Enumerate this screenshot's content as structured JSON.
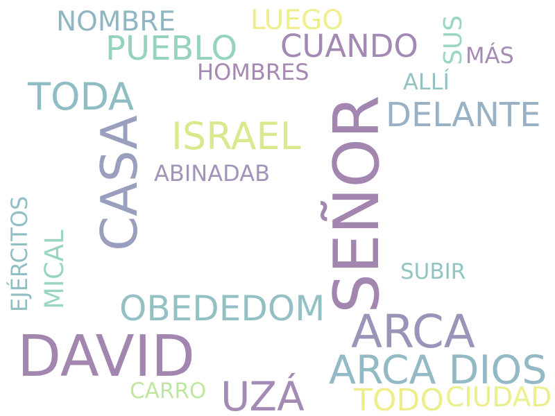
{
  "words": [
    {
      "id": "david",
      "text": "DAVID",
      "color": "#a286b0"
    },
    {
      "id": "senor",
      "text": "SEÑOR",
      "color": "#a286b0"
    },
    {
      "id": "casa",
      "text": "CASA",
      "color": "#9a9fbd"
    },
    {
      "id": "arca",
      "text": "ARCA",
      "color": "#9c94b8"
    },
    {
      "id": "arca-dios",
      "text": "ARCA DIOS",
      "color": "#92b9c4"
    },
    {
      "id": "uza",
      "text": "UZÁ",
      "color": "#a48bb5"
    },
    {
      "id": "obededom",
      "text": "OBEDEDOM",
      "color": "#92c0c4"
    },
    {
      "id": "israel",
      "text": "ISRAEL",
      "color": "#dbe98e"
    },
    {
      "id": "toda",
      "text": "TODA",
      "color": "#8fbdc4"
    },
    {
      "id": "delante",
      "text": "DELANTE",
      "color": "#98b1c4"
    },
    {
      "id": "pueblo",
      "text": "PUEBLO",
      "color": "#95d3bd"
    },
    {
      "id": "cuando",
      "text": "CUANDO",
      "color": "#a288b2"
    },
    {
      "id": "nombre",
      "text": "NOMBRE",
      "color": "#8fb6c2"
    },
    {
      "id": "luego",
      "text": "LUEGO",
      "color": "#eeee8d"
    },
    {
      "id": "hombres",
      "text": "HOMBRES",
      "color": "#a589b1"
    },
    {
      "id": "abinadab",
      "text": "ABINADAB",
      "color": "#a294b9"
    },
    {
      "id": "alli",
      "text": "ALLÍ",
      "color": "#92c2c4"
    },
    {
      "id": "mas",
      "text": "MÁS",
      "color": "#a68cb5"
    },
    {
      "id": "sus",
      "text": "SUS",
      "color": "#9ad7bf"
    },
    {
      "id": "subir",
      "text": "SUBIR",
      "color": "#92c4c4"
    },
    {
      "id": "mical",
      "text": "MICAL",
      "color": "#9ad5be"
    },
    {
      "id": "ejercitos",
      "text": "EJÉRCITOS",
      "color": "#92bfc4"
    },
    {
      "id": "carro",
      "text": "CARRO",
      "color": "#bfe7a0"
    },
    {
      "id": "todo",
      "text": "TODO",
      "color": "#ecee8d"
    },
    {
      "id": "ciudad",
      "text": "CIUDAD",
      "color": "#ecef8d"
    }
  ]
}
